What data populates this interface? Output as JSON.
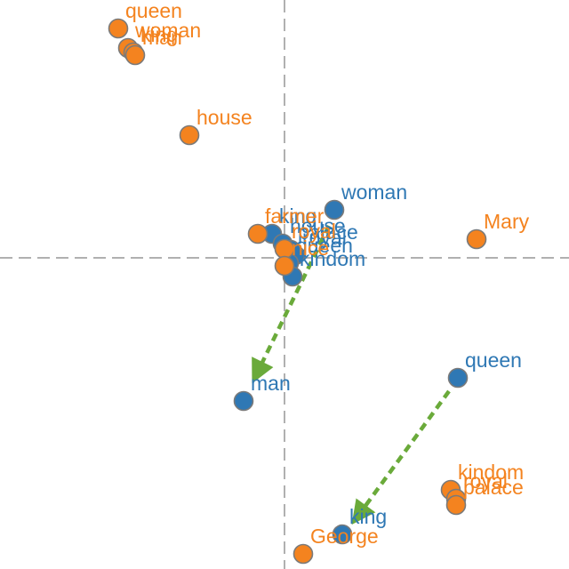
{
  "chart_data": {
    "type": "scatter",
    "title": "",
    "xlabel": "",
    "ylabel": "",
    "xlim": [
      -320,
      320
    ],
    "ylim": [
      -350,
      290
    ],
    "grid": false,
    "axes_crosshair": {
      "x": 0,
      "y": 0
    },
    "series": [
      {
        "color": "#2f78b4",
        "points": [
          {
            "label": "woman",
            "x": 56,
            "y": 54
          },
          {
            "label": "king",
            "x": -14,
            "y": 27
          },
          {
            "label": "house",
            "x": -2,
            "y": 16
          },
          {
            "label": "palace",
            "x": 7,
            "y": 9
          },
          {
            "label": "royal",
            "x": 12,
            "y": 3
          },
          {
            "label": "queen",
            "x": 5,
            "y": -6
          },
          {
            "label": "kindom",
            "x": 9,
            "y": -21
          },
          {
            "label": "man",
            "x": -46,
            "y": -161
          },
          {
            "label": "queen",
            "x": 195,
            "y": -135
          },
          {
            "label": "king",
            "x": 65,
            "y": -311
          }
        ]
      },
      {
        "color": "#f4831f",
        "points": [
          {
            "label": "queen",
            "x": -187,
            "y": 258
          },
          {
            "label": "woman",
            "x": -176,
            "y": 236
          },
          {
            "label": "king",
            "x": -170,
            "y": 231
          },
          {
            "label": "man",
            "x": -168,
            "y": 228
          },
          {
            "label": "house",
            "x": -107,
            "y": 138
          },
          {
            "label": "farmer",
            "x": -30,
            "y": 27
          },
          {
            "label": "royal",
            "x": 0,
            "y": 10
          },
          {
            "label": "nice",
            "x": 0,
            "y": -9
          },
          {
            "label": "Mary",
            "x": 216,
            "y": 21
          },
          {
            "label": "kindom",
            "x": 187,
            "y": -261
          },
          {
            "label": "royal",
            "x": 193,
            "y": -271
          },
          {
            "label": "palace",
            "x": 193,
            "y": -278
          },
          {
            "label": "George",
            "x": 21,
            "y": -333
          }
        ]
      }
    ],
    "arrows": [
      {
        "from": [
          50,
          36
        ],
        "to": [
          -31,
          -130
        ]
      },
      {
        "from": [
          185,
          -150
        ],
        "to": [
          83,
          -290
        ]
      }
    ]
  }
}
